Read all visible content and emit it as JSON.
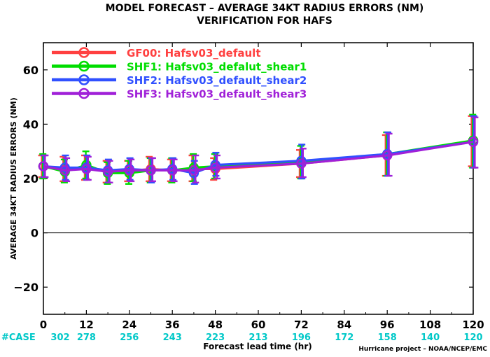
{
  "chart_data": {
    "type": "line",
    "title": "MODEL FORECAST – AVERAGE 34KT RADIUS ERRORS (NM)",
    "subtitle": "VERIFICATION FOR HAFS",
    "xlabel": "Forecast lead time (hr)",
    "ylabel": "AVERAGE 34KT RADIUS ERRORS (NM)",
    "credit": "Hurricane project – NOAA/NCEP/EMC",
    "xlim": [
      0,
      120
    ],
    "ylim": [
      -30,
      70
    ],
    "x_ticks": [
      0,
      12,
      24,
      36,
      48,
      60,
      72,
      84,
      96,
      108,
      120
    ],
    "x_tick_labels": [
      "0",
      "12",
      "24",
      "36",
      "48",
      "60",
      "72",
      "84",
      "96",
      "108",
      "120"
    ],
    "y_ticks": [
      -20,
      0,
      20,
      40,
      60
    ],
    "y_tick_labels": [
      "−20",
      "0",
      "20",
      "40",
      "60"
    ],
    "zero_line": true,
    "grid": false,
    "legend_position": "top-left",
    "case_label": "#CASE",
    "case_color": "#00c8c8",
    "case_counts": [
      {
        "x": 0,
        "label": "302"
      },
      {
        "x": 12,
        "label": "278"
      },
      {
        "x": 24,
        "label": "256"
      },
      {
        "x": 36,
        "label": "243"
      },
      {
        "x": 48,
        "label": "223"
      },
      {
        "x": 60,
        "label": "213"
      },
      {
        "x": 72,
        "label": "196"
      },
      {
        "x": 84,
        "label": "172"
      },
      {
        "x": 96,
        "label": "158"
      },
      {
        "x": 108,
        "label": "140"
      },
      {
        "x": 120,
        "label": "120"
      }
    ],
    "x": [
      0,
      6,
      12,
      18,
      24,
      30,
      36,
      42,
      48,
      72,
      96,
      120
    ],
    "series": [
      {
        "name": "GF00: Hafsv03_default",
        "color": "#ff4040",
        "values": [
          24.5,
          23.5,
          24.0,
          22.5,
          22.8,
          23.5,
          23.0,
          23.5,
          23.5,
          25.5,
          28.5,
          34.0
        ],
        "err_low": [
          20.5,
          19.0,
          19.5,
          18.5,
          19.0,
          19.0,
          19.0,
          19.0,
          19.5,
          20.5,
          21.0,
          24.5
        ],
        "err_high": [
          28.5,
          28.0,
          28.5,
          26.5,
          26.5,
          28.0,
          27.0,
          28.5,
          27.5,
          30.5,
          36.0,
          43.0
        ]
      },
      {
        "name": "SHF1: Hafsv03_defalut_shear1",
        "color": "#00dd00",
        "values": [
          24.5,
          22.5,
          25.0,
          22.0,
          22.0,
          23.0,
          23.0,
          24.0,
          24.5,
          26.0,
          29.0,
          34.0
        ],
        "err_low": [
          20.0,
          18.5,
          20.0,
          18.0,
          18.0,
          18.5,
          18.5,
          19.0,
          20.0,
          20.0,
          21.0,
          24.0
        ],
        "err_high": [
          29.0,
          27.0,
          30.0,
          26.0,
          26.5,
          27.5,
          27.5,
          29.0,
          29.0,
          32.0,
          37.0,
          43.5
        ]
      },
      {
        "name": "SHF2: Hafsv03_default_shear2",
        "color": "#3050ff",
        "values": [
          24.5,
          24.0,
          24.0,
          23.0,
          23.5,
          23.0,
          23.5,
          22.0,
          25.0,
          26.5,
          29.0,
          33.5
        ],
        "err_low": [
          20.5,
          19.5,
          19.5,
          18.5,
          19.5,
          18.5,
          19.5,
          18.0,
          21.0,
          20.0,
          21.0,
          24.0
        ],
        "err_high": [
          28.5,
          28.5,
          28.5,
          27.0,
          27.5,
          27.5,
          27.5,
          26.5,
          29.5,
          32.5,
          37.0,
          43.0
        ]
      },
      {
        "name": "SHF3: Hafsv03_default_shear3",
        "color": "#a020d8",
        "values": [
          24.5,
          23.0,
          23.5,
          22.5,
          23.0,
          23.0,
          23.0,
          23.0,
          24.0,
          25.5,
          28.5,
          33.5
        ],
        "err_low": [
          20.5,
          19.0,
          19.5,
          18.5,
          19.0,
          19.0,
          19.0,
          18.5,
          20.0,
          20.5,
          21.0,
          24.0
        ],
        "err_high": [
          28.5,
          27.5,
          28.0,
          26.5,
          27.0,
          27.5,
          27.0,
          28.5,
          28.5,
          31.0,
          36.5,
          42.5
        ]
      }
    ]
  }
}
